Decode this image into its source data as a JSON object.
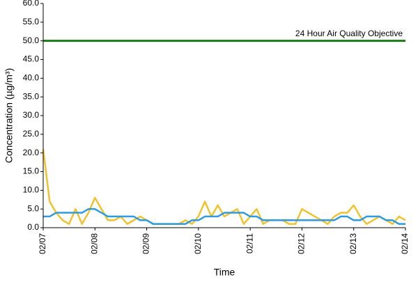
{
  "chart_data": {
    "type": "line",
    "y_label": "Concentration (µg/m³)",
    "x_label": "Time",
    "annotation": "24 Hour Air Quality Objective",
    "categories": [
      "02/07",
      null,
      null,
      null,
      null,
      null,
      null,
      null,
      "02/08",
      null,
      null,
      null,
      null,
      null,
      null,
      null,
      "02/09",
      null,
      null,
      null,
      null,
      null,
      null,
      null,
      "02/10",
      null,
      null,
      null,
      null,
      null,
      null,
      null,
      "02/11",
      null,
      null,
      null,
      null,
      null,
      null,
      null,
      "02/12",
      null,
      null,
      null,
      null,
      null,
      null,
      null,
      "02/13",
      null,
      null,
      null,
      null,
      null,
      null,
      null,
      "02/14"
    ],
    "series": [
      {
        "color": "#f2c12e",
        "values": [
          21,
          7,
          4,
          2,
          1,
          5,
          1,
          4,
          8,
          5,
          2,
          2,
          3,
          1,
          2,
          3,
          2,
          1,
          1,
          1,
          1,
          1,
          2,
          1,
          3,
          7,
          3,
          6,
          3,
          4,
          5,
          1,
          3,
          5,
          1,
          2,
          2,
          2,
          1,
          1,
          5,
          4,
          3,
          2,
          1,
          3,
          4,
          4,
          6,
          3,
          1,
          2,
          3,
          2,
          1,
          3,
          2
        ]
      },
      {
        "color": "#2e9be0",
        "values": [
          3,
          3,
          4,
          4,
          4,
          4,
          4,
          5,
          5,
          4,
          3,
          3,
          3,
          3,
          3,
          2,
          2,
          1,
          1,
          1,
          1,
          1,
          1,
          2,
          2,
          3,
          3,
          3,
          4,
          4,
          4,
          4,
          3,
          3,
          2,
          2,
          2,
          2,
          2,
          2,
          2,
          2,
          2,
          2,
          2,
          2,
          3,
          3,
          2,
          2,
          3,
          3,
          3,
          2,
          2,
          1,
          1
        ]
      },
      {
        "color": "#1a7a1a",
        "values": [
          50,
          50,
          50,
          50,
          50,
          50,
          50,
          50,
          50,
          50,
          50,
          50,
          50,
          50,
          50,
          50,
          50,
          50,
          50,
          50,
          50,
          50,
          50,
          50,
          50,
          50,
          50,
          50,
          50,
          50,
          50,
          50,
          50,
          50,
          50,
          50,
          50,
          50,
          50,
          50,
          50,
          50,
          50,
          50,
          50,
          50,
          50,
          50,
          50,
          50,
          50,
          50,
          50,
          50,
          50,
          50,
          50
        ]
      }
    ],
    "ylim": [
      0,
      60
    ],
    "yticks": [
      {
        "value": 0,
        "label": "0.0"
      },
      {
        "value": 5,
        "label": "5.0"
      },
      {
        "value": 10,
        "label": "10.0"
      },
      {
        "value": 15,
        "label": "15.0"
      },
      {
        "value": 20,
        "label": "20.0"
      },
      {
        "value": 25,
        "label": "25.0"
      },
      {
        "value": 30,
        "label": "30.0"
      },
      {
        "value": 35,
        "label": "35.0"
      },
      {
        "value": 40,
        "label": "40.0"
      },
      {
        "value": 45,
        "label": "45.0"
      },
      {
        "value": 50,
        "label": "50.0"
      },
      {
        "value": 55,
        "label": "55.0"
      },
      {
        "value": 60,
        "label": "60.0"
      }
    ],
    "grid": false
  }
}
